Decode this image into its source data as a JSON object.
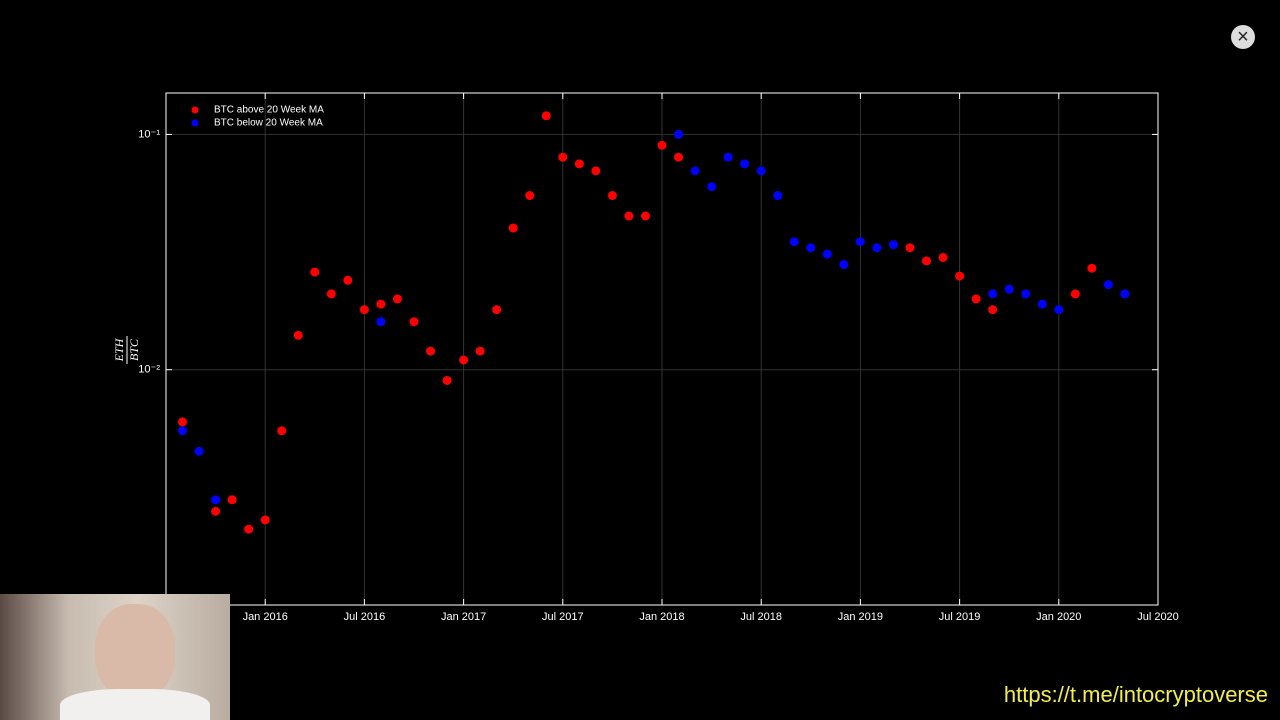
{
  "chart_data": {
    "type": "scatter",
    "ylabel": {
      "numerator": "ETH",
      "denominator": "BTC"
    },
    "x": [
      "2015-08",
      "2015-09",
      "2015-10",
      "2015-11",
      "2015-12",
      "2016-01",
      "2016-02",
      "2016-03",
      "2016-04",
      "2016-05",
      "2016-06",
      "2016-07",
      "2016-08",
      "2016-09",
      "2016-10",
      "2016-11",
      "2016-12",
      "2017-01",
      "2017-02",
      "2017-03",
      "2017-04",
      "2017-05",
      "2017-06",
      "2017-07",
      "2017-08",
      "2017-09",
      "2017-10",
      "2017-11",
      "2017-12",
      "2018-01",
      "2018-02",
      "2018-03",
      "2018-04",
      "2018-05",
      "2018-06",
      "2018-07",
      "2018-08",
      "2018-09",
      "2018-10",
      "2018-11",
      "2018-12",
      "2019-01",
      "2019-02",
      "2019-03",
      "2019-04",
      "2019-05",
      "2019-06",
      "2019-07",
      "2019-08",
      "2019-09",
      "2019-10",
      "2019-11",
      "2019-12",
      "2020-01",
      "2020-02",
      "2020-03",
      "2020-04",
      "2020-05"
    ],
    "series": [
      {
        "name": "BTC above 20 Week MA",
        "color": "#ff0000",
        "values": [
          0.006,
          null,
          0.0025,
          0.0028,
          0.0021,
          0.0023,
          0.0055,
          0.014,
          0.026,
          0.021,
          0.024,
          0.018,
          0.019,
          0.02,
          0.016,
          0.012,
          0.009,
          0.011,
          0.012,
          0.018,
          0.04,
          0.055,
          0.12,
          0.08,
          0.075,
          0.07,
          0.055,
          0.045,
          0.045,
          0.09,
          0.08,
          null,
          null,
          null,
          null,
          null,
          null,
          null,
          null,
          null,
          null,
          null,
          null,
          null,
          0.033,
          0.029,
          0.03,
          0.025,
          0.02,
          0.018,
          null,
          null,
          null,
          null,
          0.021,
          0.027,
          null,
          null
        ]
      },
      {
        "name": "BTC below 20 Week MA",
        "color": "#0000ff",
        "values": [
          0.0055,
          0.0045,
          0.0028,
          null,
          null,
          null,
          null,
          null,
          null,
          null,
          null,
          null,
          0.016,
          null,
          null,
          null,
          null,
          null,
          null,
          null,
          null,
          null,
          null,
          null,
          null,
          null,
          null,
          null,
          null,
          null,
          0.1,
          0.07,
          0.06,
          0.08,
          0.075,
          0.07,
          0.055,
          0.035,
          0.033,
          0.031,
          0.028,
          0.035,
          0.033,
          0.034,
          null,
          null,
          null,
          null,
          null,
          0.021,
          0.022,
          0.021,
          0.019,
          0.018,
          null,
          null,
          0.023,
          0.021
        ]
      }
    ],
    "xlim": [
      "2015-07",
      "2020-07"
    ],
    "xticks": [
      {
        "value": "2016-01",
        "label": "Jan 2016"
      },
      {
        "value": "2016-07",
        "label": "Jul 2016"
      },
      {
        "value": "2017-01",
        "label": "Jan 2017"
      },
      {
        "value": "2017-07",
        "label": "Jul 2017"
      },
      {
        "value": "2018-01",
        "label": "Jan 2018"
      },
      {
        "value": "2018-07",
        "label": "Jul 2018"
      },
      {
        "value": "2019-01",
        "label": "Jan 2019"
      },
      {
        "value": "2019-07",
        "label": "Jul 2019"
      },
      {
        "value": "2020-01",
        "label": "Jan 2020"
      },
      {
        "value": "2020-07",
        "label": "Jul 2020"
      }
    ],
    "ylim": [
      0.001,
      0.15
    ],
    "yticks": [
      {
        "value": 0.01,
        "label": "10⁻²"
      },
      {
        "value": 0.1,
        "label": "10⁻¹"
      }
    ],
    "yscale": "log",
    "grid": true,
    "legend": "upper left"
  },
  "overlay": {
    "link": "https://t.me/intocryptoverse"
  }
}
